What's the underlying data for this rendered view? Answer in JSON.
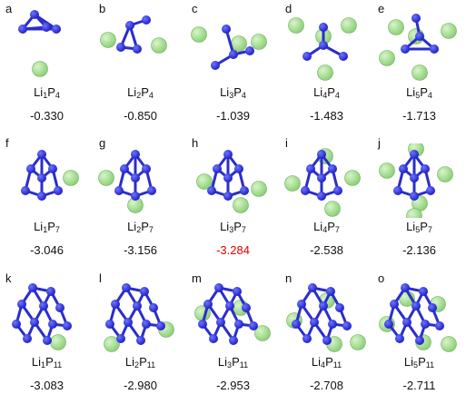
{
  "colors": {
    "phosphorus": "#1f23c8",
    "phosphorus_highlight": "#6f74ff",
    "lithium": "#8fd17a",
    "lithium_highlight": "#d7f5c9",
    "bond": "#2a2ec9",
    "energy_default": "#111111",
    "energy_highlight": "#e00000"
  },
  "panels": [
    {
      "letter": "a",
      "formula": {
        "li": "Li",
        "li_n": "1",
        "p": "P",
        "p_n": "4"
      },
      "energy": "-0.330",
      "highlight": false,
      "li_count": 1,
      "p_count": 4
    },
    {
      "letter": "b",
      "formula": {
        "li": "Li",
        "li_n": "2",
        "p": "P",
        "p_n": "4"
      },
      "energy": "-0.850",
      "highlight": false,
      "li_count": 2,
      "p_count": 4
    },
    {
      "letter": "c",
      "formula": {
        "li": "Li",
        "li_n": "3",
        "p": "P",
        "p_n": "4"
      },
      "energy": "-1.039",
      "highlight": false,
      "li_count": 3,
      "p_count": 4
    },
    {
      "letter": "d",
      "formula": {
        "li": "Li",
        "li_n": "4",
        "p": "P",
        "p_n": "4"
      },
      "energy": "-1.483",
      "highlight": false,
      "li_count": 4,
      "p_count": 4
    },
    {
      "letter": "e",
      "formula": {
        "li": "Li",
        "li_n": "5",
        "p": "P",
        "p_n": "4"
      },
      "energy": "-1.713",
      "highlight": false,
      "li_count": 5,
      "p_count": 4
    },
    {
      "letter": "f",
      "formula": {
        "li": "Li",
        "li_n": "1",
        "p": "P",
        "p_n": "7"
      },
      "energy": "-3.046",
      "highlight": false,
      "li_count": 1,
      "p_count": 7
    },
    {
      "letter": "g",
      "formula": {
        "li": "Li",
        "li_n": "2",
        "p": "P",
        "p_n": "7"
      },
      "energy": "-3.156",
      "highlight": false,
      "li_count": 2,
      "p_count": 7
    },
    {
      "letter": "h",
      "formula": {
        "li": "Li",
        "li_n": "3",
        "p": "P",
        "p_n": "7"
      },
      "energy": "-3.284",
      "highlight": true,
      "li_count": 3,
      "p_count": 7
    },
    {
      "letter": "i",
      "formula": {
        "li": "Li",
        "li_n": "4",
        "p": "P",
        "p_n": "7"
      },
      "energy": "-2.538",
      "highlight": false,
      "li_count": 4,
      "p_count": 7
    },
    {
      "letter": "j",
      "formula": {
        "li": "Li",
        "li_n": "5",
        "p": "P",
        "p_n": "7"
      },
      "energy": "-2.136",
      "highlight": false,
      "li_count": 5,
      "p_count": 7
    },
    {
      "letter": "k",
      "formula": {
        "li": "Li",
        "li_n": "1",
        "p": "P",
        "p_n": "11"
      },
      "energy": "-3.083",
      "highlight": false,
      "li_count": 1,
      "p_count": 11
    },
    {
      "letter": "l",
      "formula": {
        "li": "Li",
        "li_n": "2",
        "p": "P",
        "p_n": "11"
      },
      "energy": "-2.980",
      "highlight": false,
      "li_count": 2,
      "p_count": 11
    },
    {
      "letter": "m",
      "formula": {
        "li": "Li",
        "li_n": "3",
        "p": "P",
        "p_n": "11"
      },
      "energy": "-2.953",
      "highlight": false,
      "li_count": 3,
      "p_count": 11
    },
    {
      "letter": "n",
      "formula": {
        "li": "Li",
        "li_n": "4",
        "p": "P",
        "p_n": "11"
      },
      "energy": "-2.708",
      "highlight": false,
      "li_count": 4,
      "p_count": 11
    },
    {
      "letter": "o",
      "formula": {
        "li": "Li",
        "li_n": "5",
        "p": "P",
        "p_n": "11"
      },
      "energy": "-2.711",
      "highlight": false,
      "li_count": 5,
      "p_count": 11
    }
  ]
}
